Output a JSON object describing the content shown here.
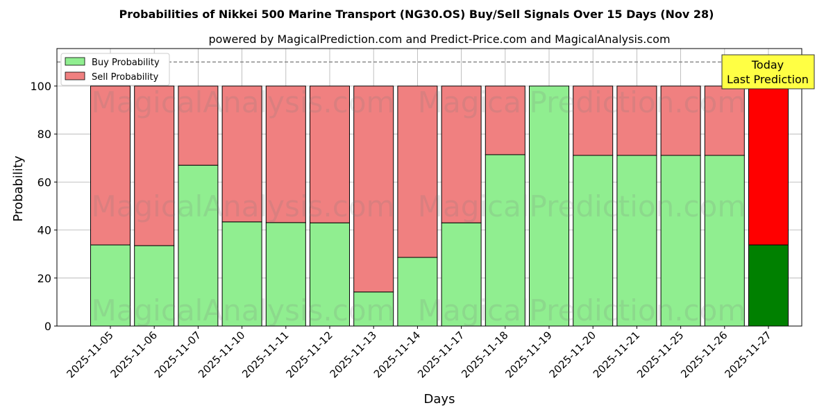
{
  "chart_data": {
    "type": "bar",
    "stacked": true,
    "title": "Probabilities of Nikkei 500 Marine Transport (NG30.OS) Buy/Sell Signals Over 15 Days (Nov 28)",
    "subtitle": "powered by MagicalPrediction.com and Predict-Price.com and MagicalAnalysis.com",
    "xlabel": "Days",
    "ylabel": "Probability",
    "ylim": [
      0,
      115.6
    ],
    "yticks": [
      0,
      20,
      40,
      60,
      80,
      100
    ],
    "grid": true,
    "legend_position": "top-left",
    "reference_line": 110,
    "categories": [
      "2025-11-05",
      "2025-11-06",
      "2025-11-07",
      "2025-11-10",
      "2025-11-11",
      "2025-11-12",
      "2025-11-13",
      "2025-11-14",
      "2025-11-17",
      "2025-11-18",
      "2025-11-19",
      "2025-11-20",
      "2025-11-21",
      "2025-11-25",
      "2025-11-26",
      "2025-11-27"
    ],
    "series": [
      {
        "name": "Buy Probability",
        "color": "#90ee90",
        "values": [
          33.8,
          33.5,
          67.0,
          43.4,
          43.1,
          43.0,
          14.2,
          28.6,
          43.0,
          71.4,
          100,
          71.1,
          71.1,
          71.1,
          71.1,
          33.8
        ]
      },
      {
        "name": "Sell Probability",
        "color": "#f08080",
        "values": [
          66.2,
          66.5,
          33.0,
          56.6,
          56.9,
          57.0,
          85.8,
          71.4,
          57.0,
          28.6,
          0,
          28.9,
          28.9,
          28.9,
          28.9,
          66.2
        ]
      }
    ],
    "highlight": {
      "index": 15,
      "buy_color": "#008000",
      "sell_color": "#ff0000"
    },
    "annotation": {
      "line1": "Today",
      "line2": "Last Prediction",
      "color": "#ffff44"
    },
    "watermarks": [
      "MagicalAnalysis.com",
      "MagicalPrediction.com"
    ]
  }
}
